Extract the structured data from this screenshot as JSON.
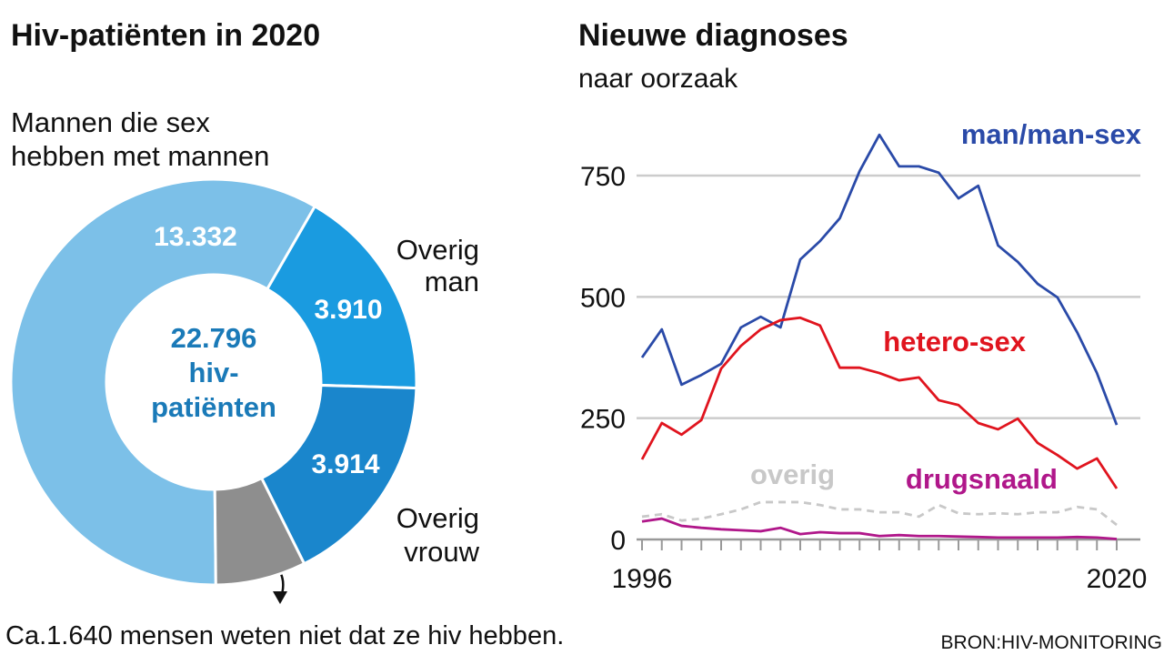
{
  "chart_data": [
    {
      "type": "donut",
      "title": "Hiv-patiënten in 2020",
      "categories": [
        "Mannen die sex hebben met mannen",
        "Overig man",
        "Overig vrouw",
        null
      ],
      "values": [
        13332,
        3910,
        3914,
        1640
      ],
      "value_labels": [
        "13.332",
        "3.910",
        "3.914",
        null
      ],
      "colors": [
        "#7cc0e8",
        "#1a9be0",
        "#1a86cc",
        "#8e8e8e"
      ],
      "center_label": [
        "22.796",
        "hiv-",
        "patiënten"
      ],
      "note": "Ca.1.640 mensen weten niet dat ze hiv hebben."
    },
    {
      "type": "line",
      "title": "Nieuwe diagnoses",
      "subtitle": "naar oorzaak",
      "x": [
        1996,
        1997,
        1998,
        1999,
        2000,
        2001,
        2002,
        2003,
        2004,
        2005,
        2006,
        2007,
        2008,
        2009,
        2010,
        2011,
        2012,
        2013,
        2014,
        2015,
        2016,
        2017,
        2018,
        2019,
        2020
      ],
      "xlim": [
        1996,
        2020
      ],
      "xticks": [
        1996,
        2020
      ],
      "ylim": [
        0,
        800
      ],
      "yticks": [
        0,
        250,
        500,
        750
      ],
      "grid": true,
      "series": [
        {
          "name": "man/man-sex",
          "color": "#2a4aa8",
          "values": [
            375,
            433,
            319,
            339,
            362,
            437,
            459,
            437,
            577,
            615,
            662,
            759,
            834,
            769,
            769,
            756,
            703,
            729,
            606,
            572,
            527,
            499,
            427,
            343,
            236
          ]
        },
        {
          "name": "hetero-sex",
          "color": "#e0141e",
          "values": [
            165,
            240,
            216,
            246,
            352,
            399,
            433,
            452,
            457,
            441,
            354,
            354,
            343,
            328,
            334,
            287,
            277,
            240,
            227,
            249,
            199,
            174,
            146,
            167,
            105
          ]
        },
        {
          "name": "overig",
          "color": "#c8c8c8",
          "dashed": true,
          "values": [
            47,
            52,
            39,
            43,
            52,
            62,
            77,
            77,
            77,
            71,
            62,
            62,
            56,
            56,
            47,
            71,
            54,
            52,
            54,
            52,
            56,
            56,
            67,
            62,
            30
          ]
        },
        {
          "name": "drugsnaald",
          "color": "#b0178a",
          "values": [
            37,
            43,
            28,
            24,
            21,
            19,
            17,
            24,
            11,
            15,
            13,
            13,
            7,
            9,
            7,
            7,
            6,
            5,
            4,
            4,
            4,
            4,
            5,
            4,
            1
          ]
        }
      ],
      "source": "BRON:HIV-MONITORING"
    }
  ]
}
